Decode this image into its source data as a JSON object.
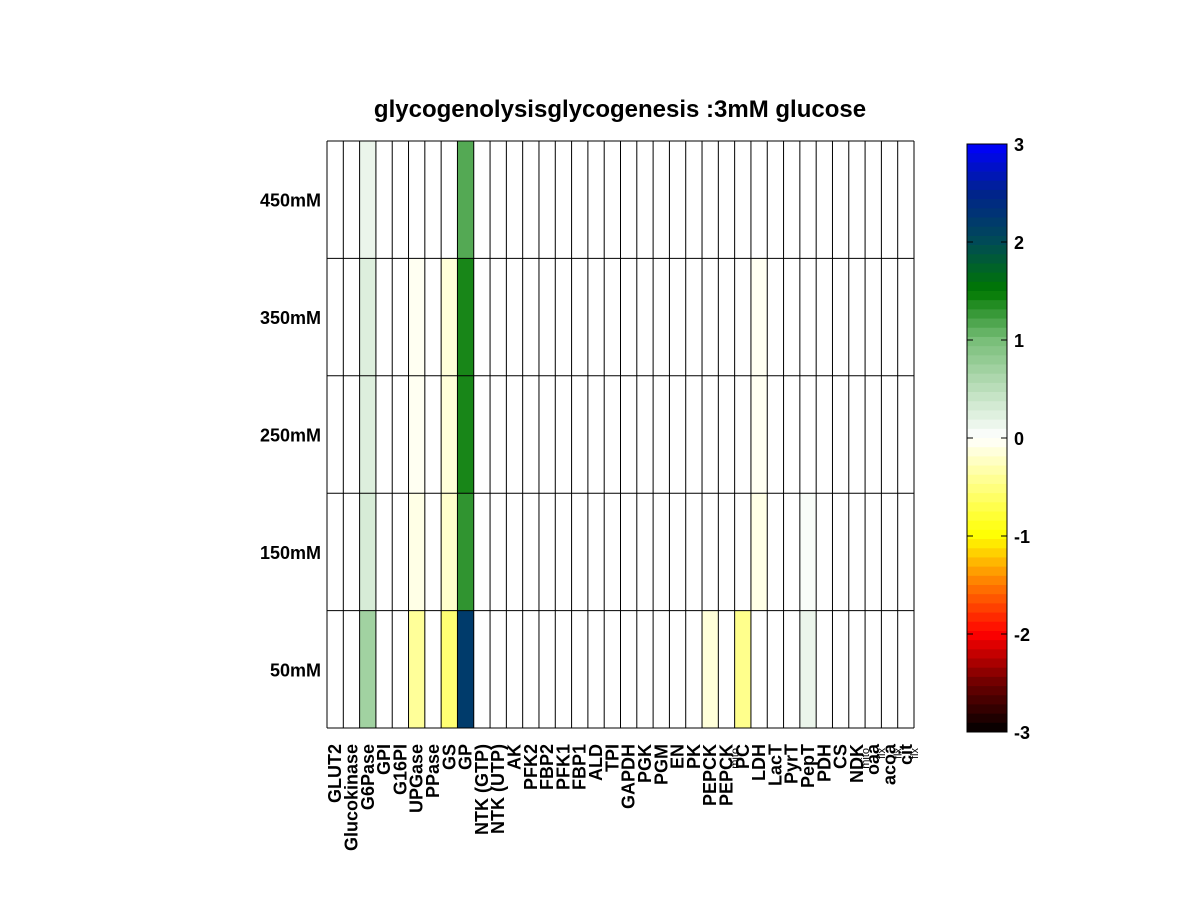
{
  "chart_data": {
    "type": "heatmap",
    "title": "glycogenolysisglycogenesis :3mM glucose",
    "xlabel": "",
    "ylabel": "",
    "columns": [
      {
        "label": "GLUT2",
        "sub": ""
      },
      {
        "label": "Glucokinase",
        "sub": ""
      },
      {
        "label": "G6Pase",
        "sub": ""
      },
      {
        "label": "GPI",
        "sub": ""
      },
      {
        "label": "G16PI",
        "sub": ""
      },
      {
        "label": "UPGase",
        "sub": ""
      },
      {
        "label": "PPase",
        "sub": ""
      },
      {
        "label": "GS",
        "sub": ""
      },
      {
        "label": "GP",
        "sub": ""
      },
      {
        "label": "NTK (GTP)",
        "sub": ""
      },
      {
        "label": "NTK (UTP)",
        "sub": ""
      },
      {
        "label": "AK",
        "sub": ""
      },
      {
        "label": "PFK2",
        "sub": ""
      },
      {
        "label": "FBP2",
        "sub": ""
      },
      {
        "label": "PFK1",
        "sub": ""
      },
      {
        "label": "FBP1",
        "sub": ""
      },
      {
        "label": "ALD",
        "sub": ""
      },
      {
        "label": "TPI",
        "sub": ""
      },
      {
        "label": "GAPDH",
        "sub": ""
      },
      {
        "label": "PGK",
        "sub": ""
      },
      {
        "label": "PGM",
        "sub": ""
      },
      {
        "label": "EN",
        "sub": ""
      },
      {
        "label": "PK",
        "sub": ""
      },
      {
        "label": "PEPCK",
        "sub": ""
      },
      {
        "label": "PEPCK",
        "sub": "mito"
      },
      {
        "label": "PC",
        "sub": ""
      },
      {
        "label": "LDH",
        "sub": ""
      },
      {
        "label": "LacT",
        "sub": ""
      },
      {
        "label": "PyrT",
        "sub": ""
      },
      {
        "label": "PepT",
        "sub": ""
      },
      {
        "label": "PDH",
        "sub": ""
      },
      {
        "label": "CS",
        "sub": ""
      },
      {
        "label": "NDK",
        "sub": "mito"
      },
      {
        "label": "oaa",
        "sub": "flx"
      },
      {
        "label": "acoa",
        "sub": "flx"
      },
      {
        "label": "cit",
        "sub": "flx"
      }
    ],
    "rows": [
      "450mM",
      "350mM",
      "250mM",
      "150mM",
      "50mM"
    ],
    "values": [
      [
        0,
        0,
        0.15,
        0,
        0,
        0,
        0,
        0,
        1.15,
        0,
        0,
        0,
        0,
        0,
        0,
        0,
        0,
        0,
        0,
        0,
        0,
        0,
        0,
        0,
        0,
        0,
        0,
        0,
        0,
        0,
        0,
        0,
        0,
        0,
        0,
        0
      ],
      [
        0,
        0,
        0.25,
        0,
        0,
        -0.05,
        0,
        -0.15,
        1.4,
        0,
        0,
        0,
        0,
        0,
        0,
        0,
        0,
        0,
        0,
        0,
        0,
        0,
        0,
        0,
        0,
        0,
        -0.05,
        0,
        0,
        0,
        0,
        0,
        0,
        0,
        0,
        0
      ],
      [
        0,
        0,
        0.25,
        0,
        0,
        -0.05,
        0,
        -0.15,
        1.4,
        0,
        0,
        0,
        0,
        0,
        0,
        0,
        0,
        0,
        0,
        0,
        0,
        0,
        0,
        0,
        0,
        0,
        -0.05,
        0,
        0,
        0,
        0,
        0,
        0,
        0,
        0,
        0
      ],
      [
        0,
        0,
        0.3,
        0,
        0,
        -0.1,
        0,
        -0.2,
        1.3,
        0,
        0,
        0,
        0,
        0,
        0,
        0,
        0,
        0,
        0,
        0,
        0,
        0,
        0,
        0,
        0,
        0,
        -0.1,
        0,
        0,
        0.05,
        0,
        0,
        0,
        0,
        0,
        0
      ],
      [
        0,
        0,
        0.7,
        0,
        0,
        -0.4,
        0,
        -0.55,
        2.2,
        0,
        0,
        0,
        0,
        0,
        0,
        0,
        0,
        0,
        0,
        0,
        0,
        0,
        0,
        -0.15,
        0,
        -0.45,
        0,
        0,
        0,
        0.15,
        0,
        0,
        0,
        0,
        0,
        0
      ]
    ],
    "colorbar": {
      "min": -3,
      "max": 3,
      "ticks": [
        3,
        2,
        1,
        0,
        -1,
        -2,
        -3
      ],
      "ticklabels": [
        "3",
        "2",
        "1",
        "0",
        "-1",
        "-2",
        "-3"
      ]
    },
    "grid": true,
    "legend": "colorbar-right"
  }
}
